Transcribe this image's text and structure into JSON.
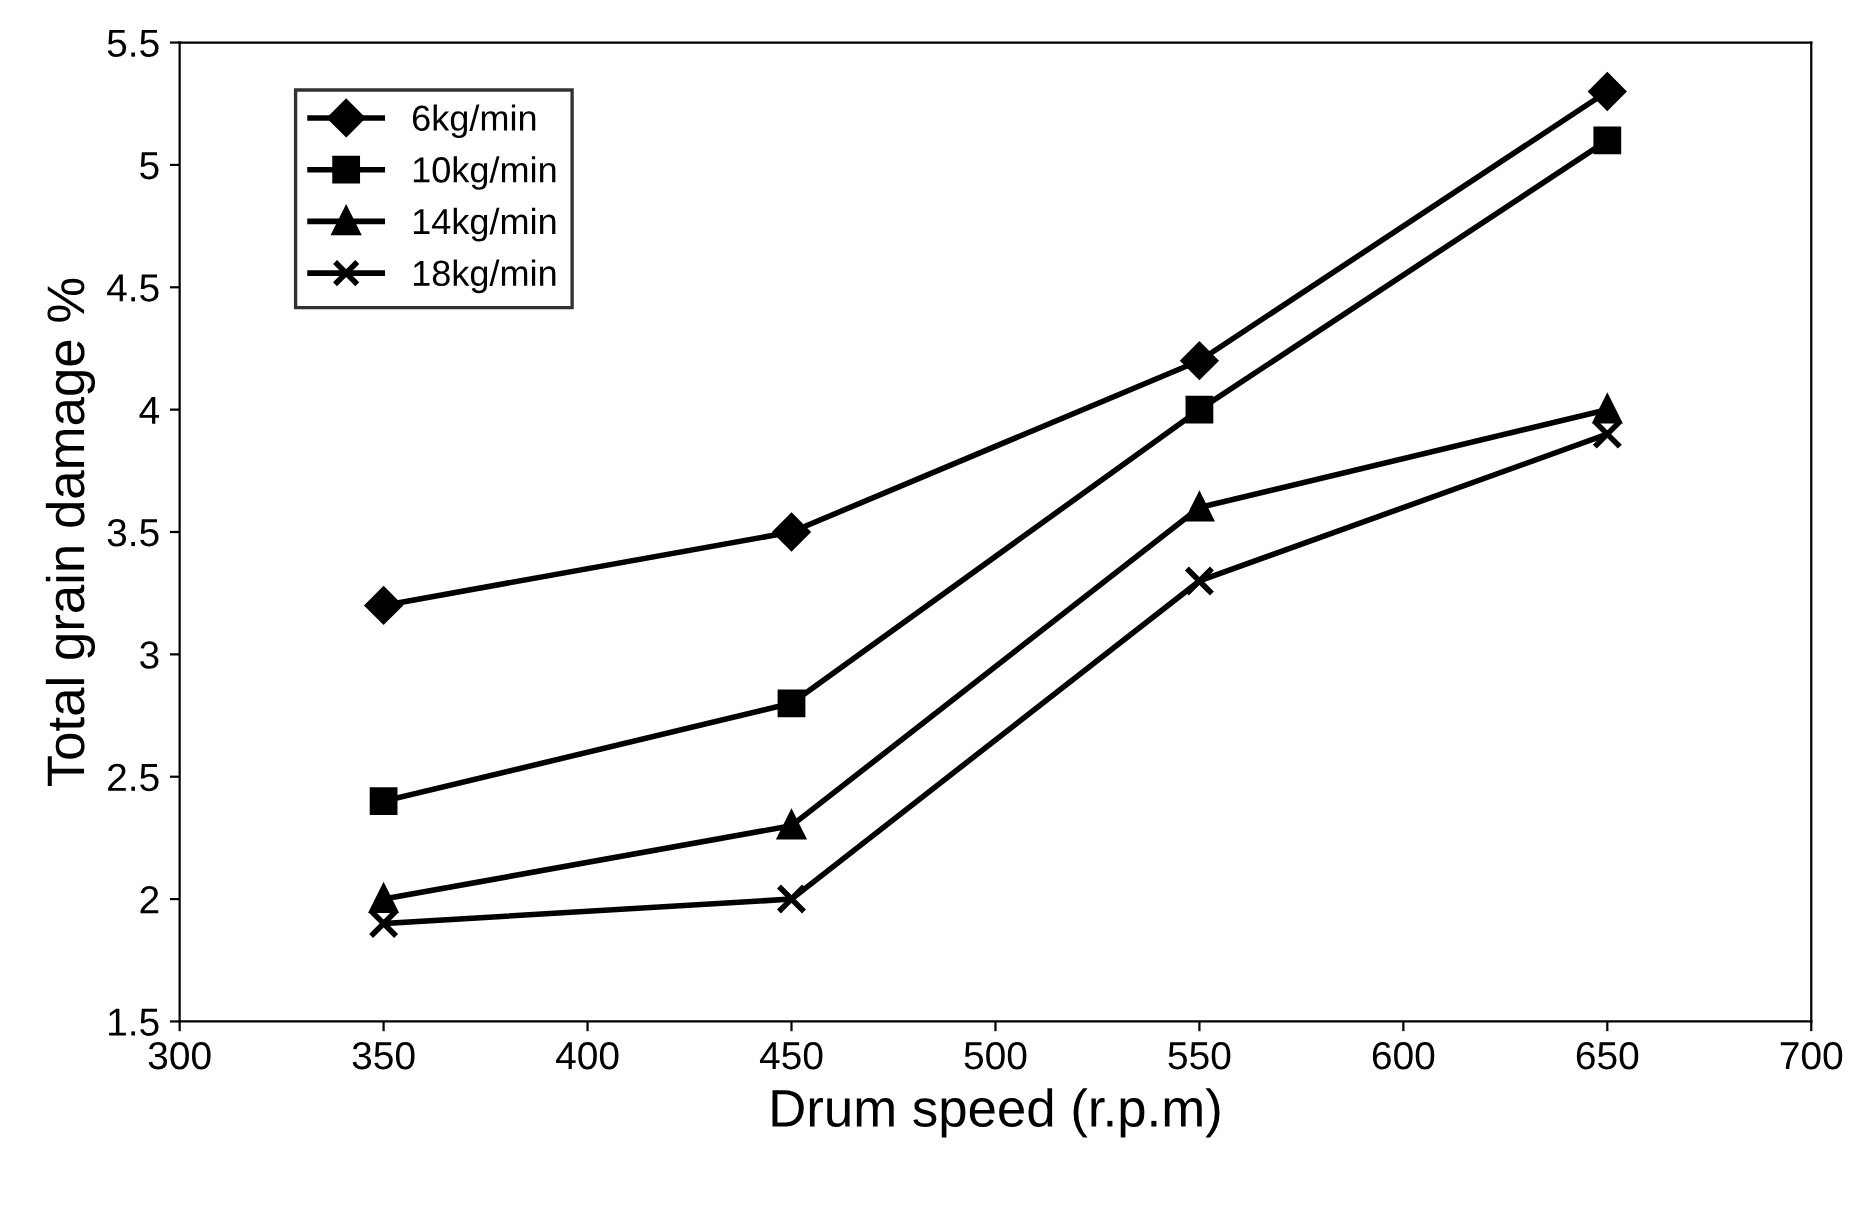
{
  "chart_data": {
    "type": "line",
    "xlabel": "Drum speed (r.p.m)",
    "ylabel": "Total grain damage %",
    "x": [
      350,
      450,
      550,
      650
    ],
    "series": [
      {
        "name": "6kg/min",
        "color": "#000000",
        "marker": "diamond",
        "values": [
          3.2,
          3.5,
          4.2,
          5.3
        ]
      },
      {
        "name": "10kg/min",
        "color": "#000000",
        "marker": "square",
        "values": [
          2.4,
          2.8,
          4.0,
          5.1
        ]
      },
      {
        "name": "14kg/min",
        "color": "#000000",
        "marker": "triangle",
        "values": [
          2.0,
          2.3,
          3.6,
          4.0
        ]
      },
      {
        "name": "18kg/min",
        "color": "#000000",
        "marker": "cross",
        "values": [
          1.9,
          2.0,
          3.3,
          3.9
        ]
      }
    ],
    "xlim": [
      300,
      700
    ],
    "xticks": [
      300,
      350,
      400,
      450,
      500,
      550,
      600,
      650,
      700
    ],
    "ylim": [
      1.5,
      5.5
    ],
    "yticks": [
      1.5,
      2,
      2.5,
      3,
      3.5,
      4,
      4.5,
      5,
      5.5
    ],
    "grid": false,
    "legend": "top left",
    "line_style": "solid"
  }
}
